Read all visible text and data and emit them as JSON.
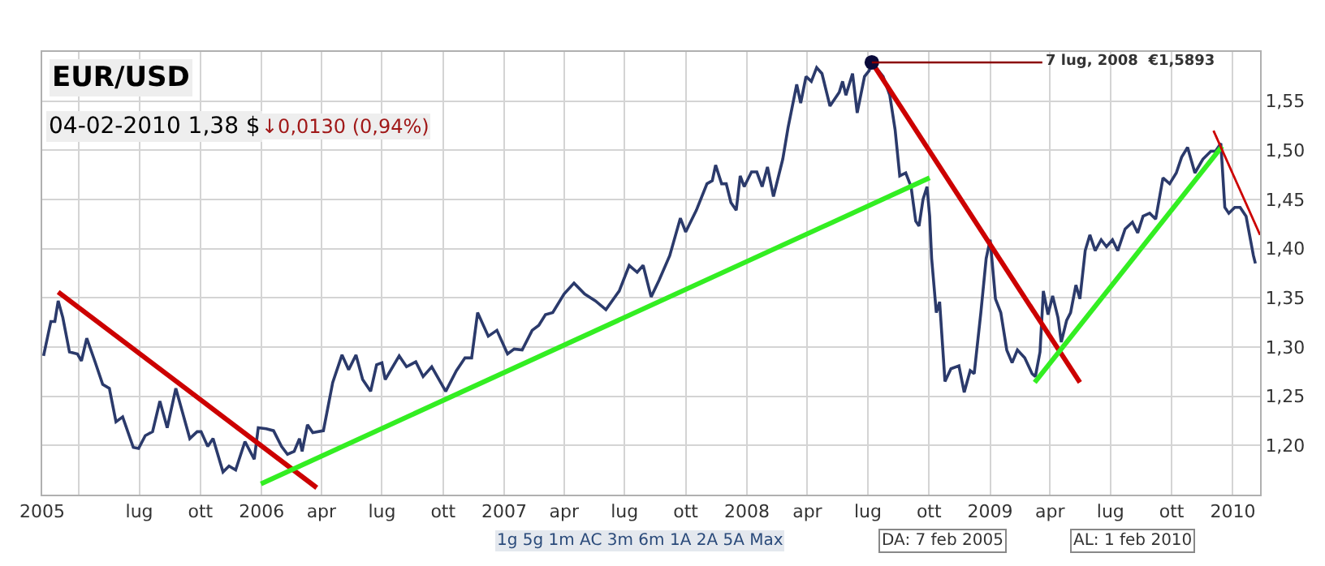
{
  "chart_data": {
    "type": "line",
    "title": "EUR/USD",
    "subtitle": "04-02-2010 1,38 $",
    "annotations": [
      "↓0,0130 (0,94%)",
      "1g 5g 1m AC 3m 6m 1A 2A 5A Max",
      "DA: 7 feb 2005",
      "AL: 1 feb 2010",
      {
        "text": "7 lug, 2008  €1,5893",
        "x": "2008-07-07",
        "y": 1.5893
      }
    ],
    "xlim": [
      "2005-02-05",
      "2010-02-11"
    ],
    "ylim": [
      1.15,
      1.6
    ],
    "xticks": [
      {
        "value": "2005-02-05",
        "label": "2005"
      },
      {
        "value": "2005-04-01",
        "label": null
      },
      {
        "value": "2005-07-01",
        "label": "lug"
      },
      {
        "value": "2005-10-01",
        "label": "ott"
      },
      {
        "value": "2006-01-01",
        "label": "2006"
      },
      {
        "value": "2006-04-01",
        "label": "apr"
      },
      {
        "value": "2006-07-01",
        "label": "lug"
      },
      {
        "value": "2006-10-01",
        "label": "ott"
      },
      {
        "value": "2007-01-01",
        "label": "2007"
      },
      {
        "value": "2007-04-01",
        "label": "apr"
      },
      {
        "value": "2007-07-01",
        "label": "lug"
      },
      {
        "value": "2007-10-01",
        "label": "ott"
      },
      {
        "value": "2008-01-01",
        "label": "2008"
      },
      {
        "value": "2008-04-01",
        "label": "apr"
      },
      {
        "value": "2008-07-01",
        "label": "lug"
      },
      {
        "value": "2008-10-01",
        "label": "ott"
      },
      {
        "value": "2009-01-01",
        "label": "2009"
      },
      {
        "value": "2009-04-01",
        "label": "apr"
      },
      {
        "value": "2009-07-01",
        "label": "lug"
      },
      {
        "value": "2009-10-01",
        "label": "ott"
      },
      {
        "value": "2010-01-01",
        "label": "2010"
      }
    ],
    "yticks": [
      {
        "value": 1.2,
        "label": "1,20"
      },
      {
        "value": 1.25,
        "label": "1,25"
      },
      {
        "value": 1.3,
        "label": "1,30"
      },
      {
        "value": 1.35,
        "label": "1,35"
      },
      {
        "value": 1.4,
        "label": "1,40"
      },
      {
        "value": 1.45,
        "label": "1,45"
      },
      {
        "value": 1.5,
        "label": "1,50"
      },
      {
        "value": 1.55,
        "label": "1,55"
      }
    ],
    "grid": true,
    "marker": "none",
    "line_style": "solid",
    "series": [
      {
        "color": "#2b3a6b",
        "x": [
          "2005-02-07",
          "2005-02-18",
          "2005-02-24",
          "2005-03-01",
          "2005-03-08",
          "2005-03-18",
          "2005-03-30",
          "2005-04-05",
          "2005-04-13",
          "2005-04-25",
          "2005-05-07",
          "2005-05-17",
          "2005-05-27",
          "2005-06-06",
          "2005-06-22",
          "2005-06-30",
          "2005-07-10",
          "2005-07-21",
          "2005-08-01",
          "2005-08-12",
          "2005-08-25",
          "2005-09-15",
          "2005-09-26",
          "2005-10-02",
          "2005-10-12",
          "2005-10-20",
          "2005-11-04",
          "2005-11-13",
          "2005-11-23",
          "2005-12-07",
          "2005-12-21",
          "2005-12-27",
          "2006-01-08",
          "2006-01-19",
          "2006-01-31",
          "2006-02-09",
          "2006-02-19",
          "2006-02-27",
          "2006-03-03",
          "2006-03-11",
          "2006-03-19",
          "2006-04-04",
          "2006-04-18",
          "2006-05-02",
          "2006-05-12",
          "2006-05-23",
          "2006-06-02",
          "2006-06-14",
          "2006-06-23",
          "2006-07-01",
          "2006-07-06",
          "2006-07-27",
          "2006-08-07",
          "2006-08-21",
          "2006-09-01",
          "2006-09-14",
          "2006-10-05",
          "2006-10-21",
          "2006-11-03",
          "2006-11-13",
          "2006-11-22",
          "2006-12-08",
          "2006-12-21",
          "2007-01-06",
          "2007-01-16",
          "2007-01-28",
          "2007-02-12",
          "2007-02-22",
          "2007-03-04",
          "2007-03-15",
          "2007-04-01",
          "2007-04-16",
          "2007-05-02",
          "2007-05-18",
          "2007-06-03",
          "2007-06-23",
          "2007-07-08",
          "2007-07-20",
          "2007-07-29",
          "2007-08-10",
          "2007-08-22",
          "2007-09-07",
          "2007-09-23",
          "2007-10-01",
          "2007-10-17",
          "2007-11-02",
          "2007-11-10",
          "2007-11-15",
          "2007-11-24",
          "2007-12-01",
          "2007-12-08",
          "2007-12-16",
          "2007-12-22",
          "2007-12-28",
          "2008-01-08",
          "2008-01-16",
          "2008-01-24",
          "2008-02-01",
          "2008-02-10",
          "2008-02-24",
          "2008-03-03",
          "2008-03-16",
          "2008-03-22",
          "2008-03-30",
          "2008-04-07",
          "2008-04-15",
          "2008-04-23",
          "2008-05-05",
          "2008-05-19",
          "2008-05-24",
          "2008-05-29",
          "2008-06-08",
          "2008-06-15",
          "2008-06-26",
          "2008-07-03",
          "2008-07-07",
          "2008-07-24",
          "2008-08-03",
          "2008-08-11",
          "2008-08-18",
          "2008-08-27",
          "2008-09-04",
          "2008-09-11",
          "2008-09-16",
          "2008-09-22",
          "2008-09-28",
          "2008-10-02",
          "2008-10-05",
          "2008-10-12",
          "2008-10-17",
          "2008-10-25",
          "2008-11-03",
          "2008-11-15",
          "2008-11-23",
          "2008-12-02",
          "2008-12-08",
          "2008-12-18",
          "2008-12-26",
          "2009-01-01",
          "2009-01-09",
          "2009-01-17",
          "2009-01-26",
          "2009-02-03",
          "2009-02-11",
          "2009-02-22",
          "2009-03-05",
          "2009-03-10",
          "2009-03-17",
          "2009-03-22",
          "2009-03-29",
          "2009-04-05",
          "2009-04-13",
          "2009-04-18",
          "2009-04-26",
          "2009-05-02",
          "2009-05-10",
          "2009-05-16",
          "2009-05-24",
          "2009-05-31",
          "2009-06-08",
          "2009-06-17",
          "2009-06-25",
          "2009-07-04",
          "2009-07-12",
          "2009-07-23",
          "2009-08-03",
          "2009-08-11",
          "2009-08-19",
          "2009-08-29",
          "2009-09-07",
          "2009-09-18",
          "2009-09-28",
          "2009-10-08",
          "2009-10-16",
          "2009-10-25",
          "2009-11-05",
          "2009-11-17",
          "2009-11-29",
          "2009-12-06",
          "2009-12-14",
          "2009-12-20",
          "2009-12-26",
          "2010-01-04",
          "2010-01-12",
          "2010-01-21",
          "2010-02-01",
          "2010-02-04"
        ],
        "values": [
          1.291,
          1.326,
          1.326,
          1.347,
          1.33,
          1.295,
          1.293,
          1.286,
          1.309,
          1.286,
          1.262,
          1.258,
          1.224,
          1.229,
          1.198,
          1.197,
          1.21,
          1.214,
          1.245,
          1.218,
          1.258,
          1.207,
          1.214,
          1.214,
          1.199,
          1.207,
          1.173,
          1.179,
          1.175,
          1.204,
          1.186,
          1.218,
          1.217,
          1.215,
          1.199,
          1.191,
          1.194,
          1.207,
          1.194,
          1.221,
          1.213,
          1.215,
          1.264,
          1.292,
          1.277,
          1.292,
          1.267,
          1.255,
          1.282,
          1.284,
          1.267,
          1.291,
          1.28,
          1.285,
          1.27,
          1.28,
          1.255,
          1.276,
          1.289,
          1.289,
          1.335,
          1.311,
          1.317,
          1.293,
          1.298,
          1.297,
          1.317,
          1.322,
          1.333,
          1.335,
          1.354,
          1.365,
          1.354,
          1.347,
          1.338,
          1.357,
          1.383,
          1.376,
          1.383,
          1.351,
          1.368,
          1.393,
          1.431,
          1.417,
          1.439,
          1.466,
          1.469,
          1.485,
          1.466,
          1.466,
          1.447,
          1.439,
          1.474,
          1.463,
          1.478,
          1.478,
          1.463,
          1.483,
          1.453,
          1.491,
          1.523,
          1.567,
          1.548,
          1.575,
          1.57,
          1.584,
          1.578,
          1.545,
          1.559,
          1.57,
          1.556,
          1.578,
          1.538,
          1.575,
          1.581,
          1.5893,
          1.575,
          1.556,
          1.521,
          1.474,
          1.477,
          1.463,
          1.428,
          1.423,
          1.45,
          1.463,
          1.433,
          1.39,
          1.335,
          1.346,
          1.265,
          1.278,
          1.281,
          1.254,
          1.276,
          1.273,
          1.335,
          1.39,
          1.409,
          1.349,
          1.335,
          1.297,
          1.284,
          1.297,
          1.289,
          1.273,
          1.27,
          1.295,
          1.357,
          1.333,
          1.352,
          1.33,
          1.305,
          1.327,
          1.335,
          1.363,
          1.349,
          1.398,
          1.414,
          1.398,
          1.409,
          1.402,
          1.409,
          1.398,
          1.42,
          1.427,
          1.416,
          1.433,
          1.436,
          1.43,
          1.472,
          1.466,
          1.477,
          1.493,
          1.503,
          1.477,
          1.491,
          1.499,
          1.499,
          1.507,
          1.442,
          1.436,
          1.442,
          1.442,
          1.433,
          1.393,
          1.385
        ]
      },
      {
        "color": "#cc0000",
        "x": [
          "2005-03-01",
          "2006-03-25"
        ],
        "values": [
          1.356,
          1.157
        ]
      },
      {
        "color": "#33ee22",
        "x": [
          "2005-12-31",
          "2008-10-02"
        ],
        "values": [
          1.161,
          1.472
        ]
      },
      {
        "color": "#cc0000",
        "x": [
          "2008-07-07",
          "2009-05-16"
        ],
        "values": [
          1.5893,
          1.264
        ]
      },
      {
        "color": "#33ee22",
        "x": [
          "2009-03-09",
          "2009-12-16"
        ],
        "values": [
          1.264,
          1.504
        ]
      },
      {
        "color": "#cc0000",
        "x": [
          "2009-12-03",
          "2010-02-11"
        ],
        "values": [
          1.52,
          1.414
        ]
      },
      {
        "type": "scatter",
        "marker": "circle",
        "color": "#0a0a3a",
        "x": [
          "2008-07-07"
        ],
        "values": [
          1.5893
        ]
      }
    ]
  }
}
